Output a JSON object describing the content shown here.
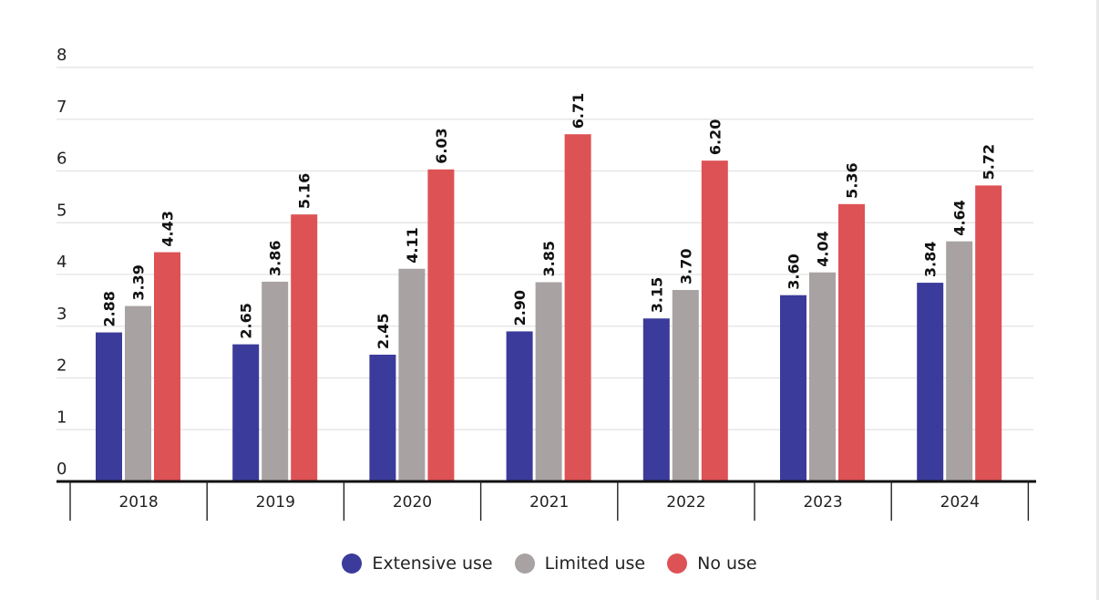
{
  "chart_data": {
    "type": "bar",
    "categories": [
      "2018",
      "2019",
      "2020",
      "2021",
      "2022",
      "2023",
      "2024"
    ],
    "series": [
      {
        "name": "Extensive use",
        "color": "#3b3b9b",
        "values": [
          2.88,
          2.65,
          2.45,
          2.9,
          3.15,
          3.6,
          3.84
        ]
      },
      {
        "name": "Limited use",
        "color": "#a8a2a2",
        "values": [
          3.39,
          3.86,
          4.11,
          3.85,
          3.7,
          4.04,
          4.64
        ]
      },
      {
        "name": "No use",
        "color": "#dd5255",
        "values": [
          4.43,
          5.16,
          6.03,
          6.71,
          6.2,
          5.36,
          5.72
        ]
      }
    ],
    "value_labels": [
      [
        "2.88",
        "2.65",
        "2.45",
        "2.90",
        "3.15",
        "3.60",
        "3.84"
      ],
      [
        "3.39",
        "3.86",
        "4.11",
        "3.85",
        "3.70",
        "4.04",
        "4.64"
      ],
      [
        "4.43",
        "5.16",
        "6.03",
        "6.71",
        "6.20",
        "5.36",
        "5.72"
      ]
    ],
    "yticks": [
      "0",
      "1",
      "2",
      "3",
      "4",
      "5",
      "6",
      "7",
      "8"
    ],
    "ylim": [
      0,
      8
    ],
    "grid": true,
    "legend_position": "bottom-center"
  },
  "legend": {
    "extensive": {
      "label": "Extensive use",
      "color": "#3b3b9b"
    },
    "limited": {
      "label": "Limited use",
      "color": "#a8a2a2"
    },
    "none": {
      "label": "No use",
      "color": "#dd5255"
    }
  }
}
